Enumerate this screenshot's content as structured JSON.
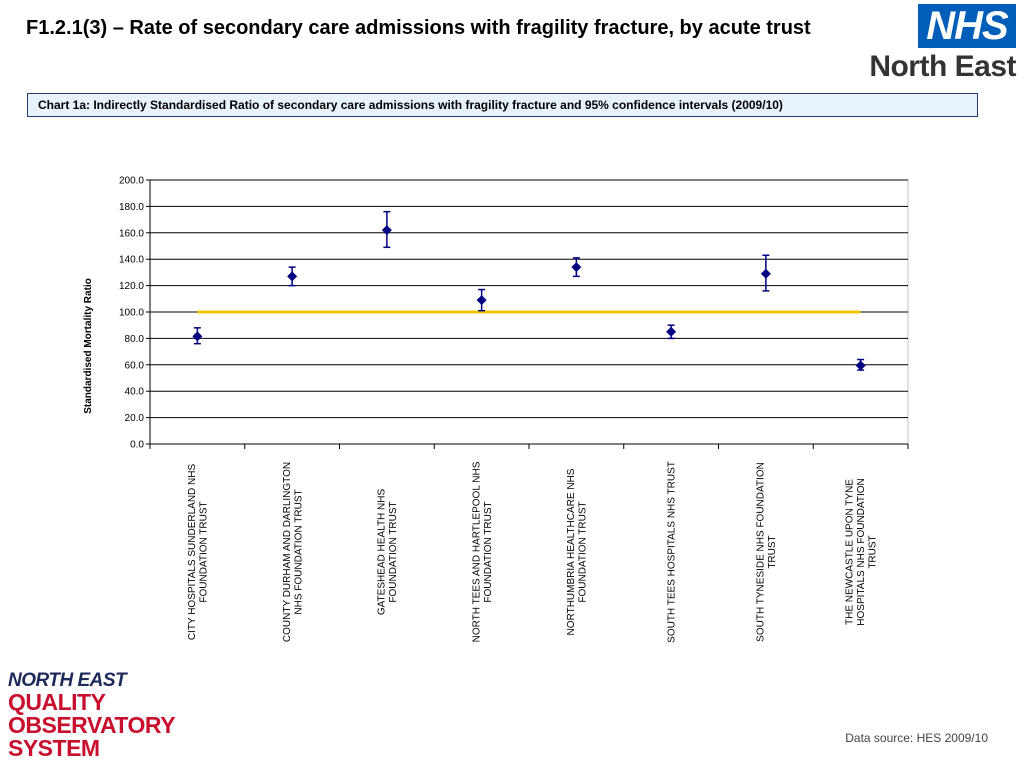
{
  "page": {
    "title": "F1.2.1(3) – Rate of secondary care admissions with fragility fracture, by acute trust",
    "caption": "Chart 1a: Indirectly Standardised Ratio of secondary care admissions with fragility fracture and 95% confidence intervals (2009/10)",
    "data_source": "Data source: HES 2009/10"
  },
  "logos": {
    "nhs_mark": "NHS",
    "nhs_region": "North East",
    "qos_line1": "NORTH EAST",
    "qos_line2": "QUALITY",
    "qos_line3": "OBSERVATORY",
    "qos_line4": "SYSTEM"
  },
  "colors": {
    "marker": "#000080",
    "reference_line": "#f2c300",
    "grid": "#000000",
    "nhs_blue": "#005eb8",
    "qos_red": "#c8102e"
  },
  "chart_data": {
    "type": "scatter",
    "title": "",
    "xlabel": "",
    "ylabel": "Standardised  Mortality Ratio",
    "ylim": [
      0,
      200
    ],
    "yticks": [
      "0.0",
      "20.0",
      "40.0",
      "60.0",
      "80.0",
      "100.0",
      "120.0",
      "140.0",
      "160.0",
      "180.0",
      "200.0"
    ],
    "grid": true,
    "reference_line": 100,
    "categories": [
      [
        "CITY HOSPITALS  SUNDERLAND  NHS",
        "FOUNDATION TRUST"
      ],
      [
        "COUNTY DURHAM  AND  DARLINGTON",
        "NHS FOUNDATION TRUST"
      ],
      [
        "GATESHEAD  HEALTH  NHS",
        "FOUNDATION TRUST"
      ],
      [
        "NORTH TEES  AND HARTLEPOOL  NHS",
        "FOUNDATION TRUST"
      ],
      [
        "NORTHUMBRIA  HEALTHCARE  NHS",
        "FOUNDATION TRUST"
      ],
      [
        "SOUTH TEES  HOSPITALS  NHS TRUST"
      ],
      [
        "SOUTH TYNESIDE  NHS FOUNDATION",
        "TRUST"
      ],
      [
        "THE NEWCASTLE  UPON  TYNE",
        "HOSPITALS  NHS FOUNDATION",
        "TRUST"
      ]
    ],
    "values": [
      81.5,
      127,
      162,
      109,
      134,
      85,
      129,
      59.5
    ],
    "ci_lower": [
      76,
      120,
      149,
      101,
      127,
      80,
      116,
      56
    ],
    "ci_upper": [
      88,
      134,
      176,
      117,
      141,
      90,
      143,
      64
    ]
  }
}
